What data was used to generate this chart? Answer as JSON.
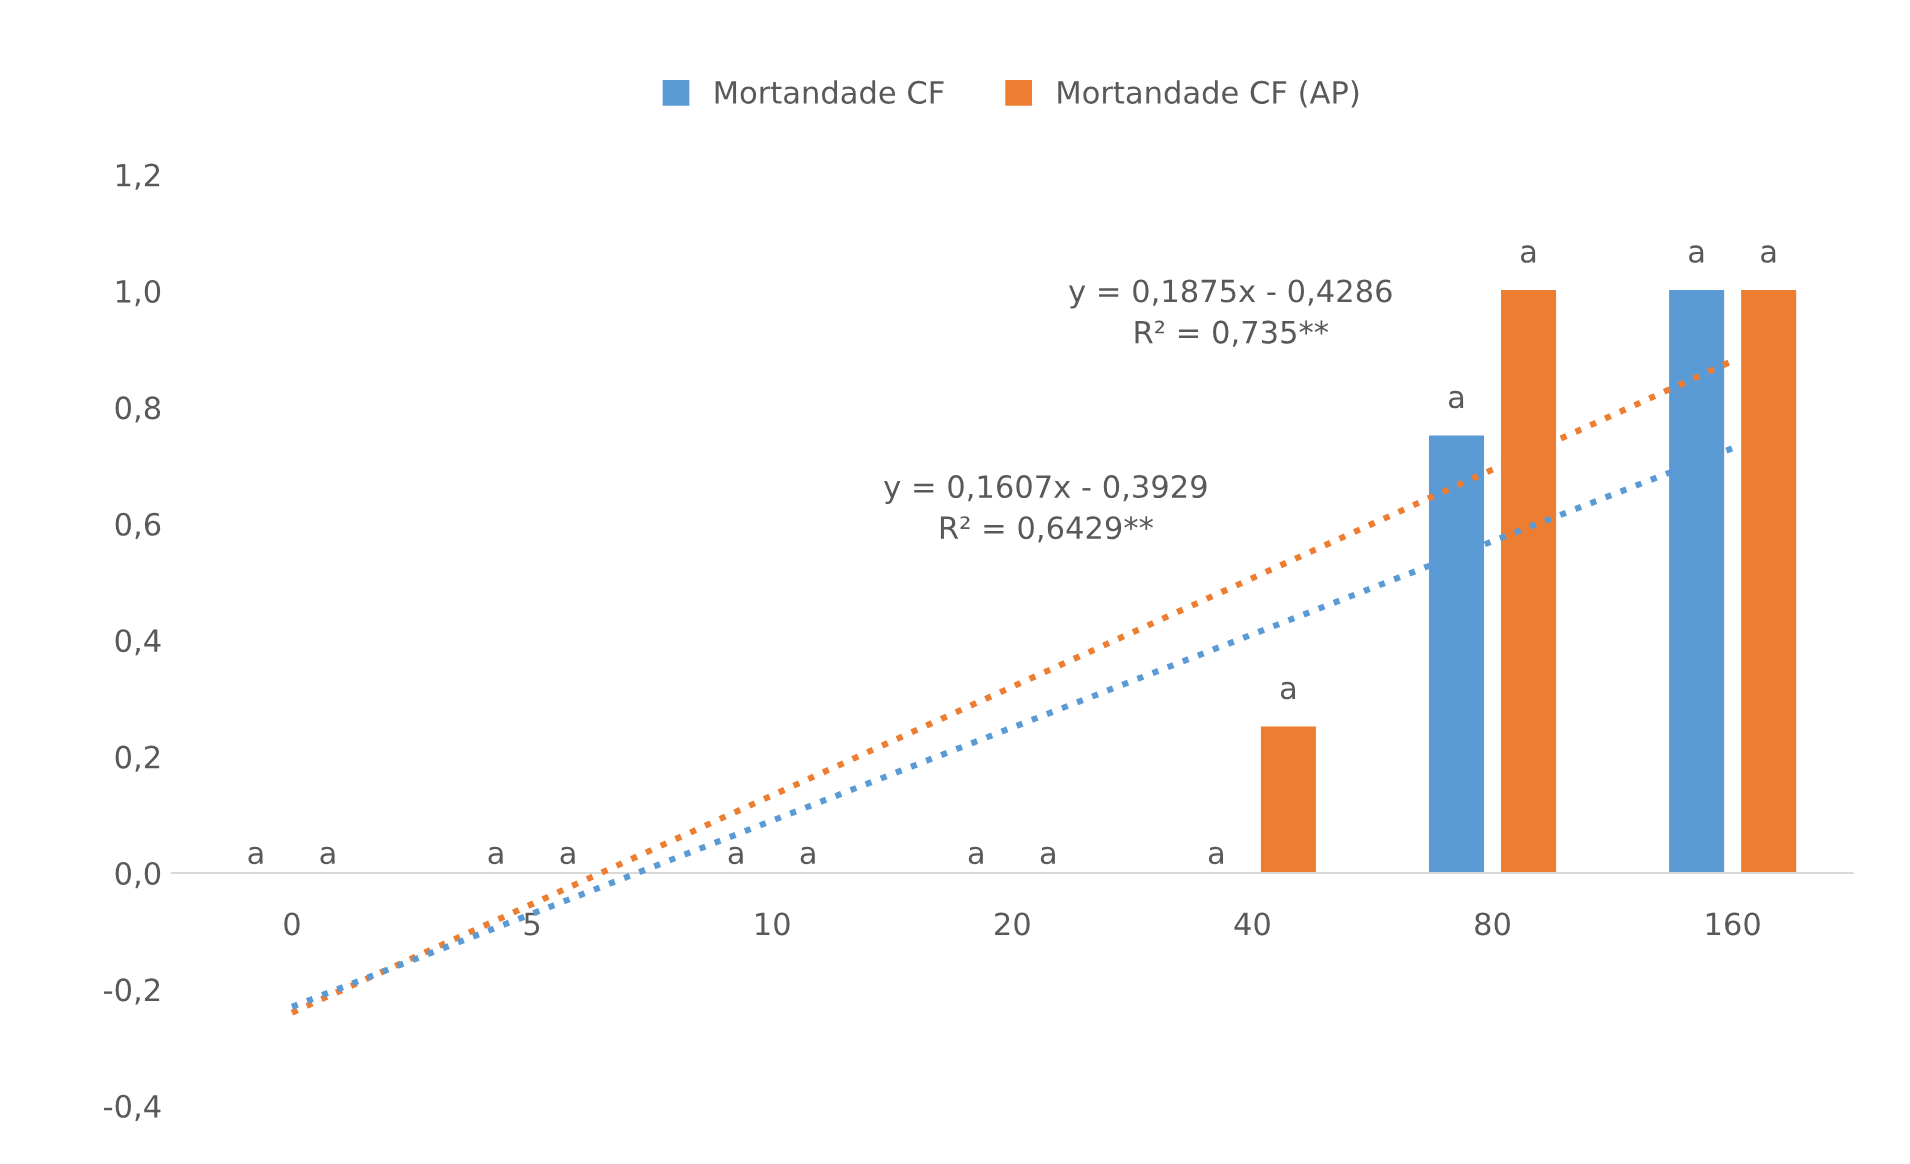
{
  "chart_data": {
    "type": "bar",
    "categories": [
      "0",
      "5",
      "10",
      "20",
      "40",
      "80",
      "160"
    ],
    "series": [
      {
        "name": "Mortandade CF",
        "color": "#5b9bd5",
        "values": [
          0,
          0,
          0,
          0,
          0,
          0.75,
          1.0
        ],
        "value_labels": [
          "a",
          "a",
          "a",
          "a",
          "a",
          "a",
          "a"
        ]
      },
      {
        "name": "Mortandade CF (AP)",
        "color": "#ed7d31",
        "values": [
          0,
          0,
          0,
          0,
          0.25,
          1.0,
          1.0
        ],
        "value_labels": [
          "a",
          "a",
          "a",
          "a",
          "a",
          "a",
          "a"
        ]
      },
      {
        "type": "line",
        "color": "#ed7d31",
        "line_style": "dotted",
        "x": [
          "0",
          "160"
        ],
        "values": [
          -0.24,
          0.88
        ]
      },
      {
        "type": "line",
        "color": "#5b9bd5",
        "line_style": "dotted",
        "x": [
          "0",
          "160"
        ],
        "values": [
          -0.23,
          0.73
        ]
      }
    ],
    "annotations": [
      "y = 0,1875x - 0,4286\nR² = 0,735**",
      "y = 0,1607x - 0,3929\nR² = 0,6429**"
    ],
    "ylim": [
      -0.4,
      1.2
    ],
    "yticks": [
      {
        "value": -0.4,
        "label": "-0,4"
      },
      {
        "value": -0.2,
        "label": "-0,2"
      },
      {
        "value": 0,
        "label": "0,0"
      },
      {
        "value": 0.2,
        "label": "0,2"
      },
      {
        "value": 0.4,
        "label": "0,4"
      },
      {
        "value": 0.6,
        "label": "0,6"
      },
      {
        "value": 0.8,
        "label": "0,8"
      },
      {
        "value": 1.0,
        "label": "1,0"
      },
      {
        "value": 1.2,
        "label": "1,2"
      }
    ],
    "grid": false,
    "legend": "top"
  }
}
